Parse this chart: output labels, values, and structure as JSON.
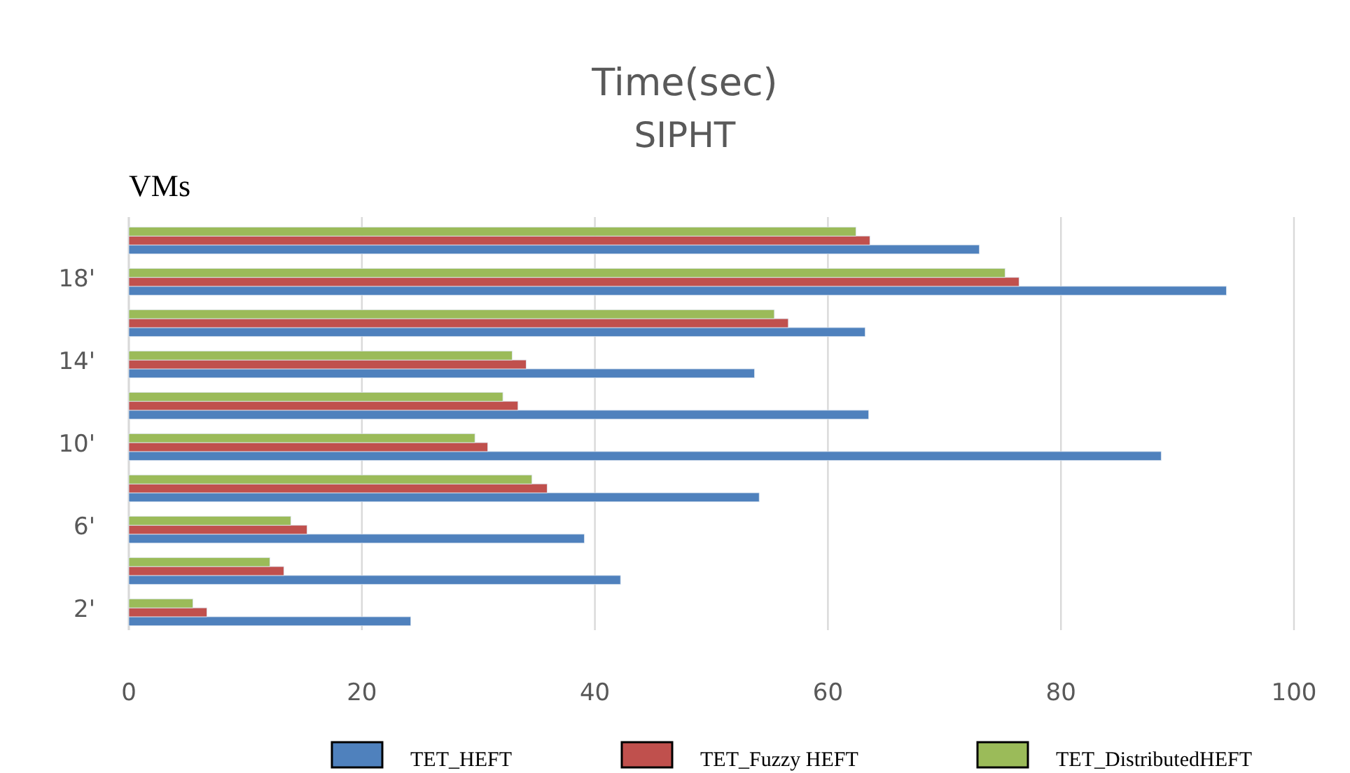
{
  "chart_data": {
    "type": "bar",
    "orientation": "horizontal",
    "title": "Time(sec)",
    "subtitle": "SIPHT",
    "ylabel": "VMs",
    "categories": [
      null,
      "18'",
      null,
      "14'",
      null,
      "10'",
      null,
      "6'",
      null,
      "2'"
    ],
    "series": [
      {
        "name": "TET_HEFT",
        "color": "#4f81bd",
        "values": [
          73.0,
          94.2,
          63.2,
          53.7,
          63.5,
          88.6,
          54.1,
          39.1,
          42.2,
          24.2
        ]
      },
      {
        "name": "TET_Fuzzy HEFT",
        "color": "#c0504d",
        "values": [
          63.6,
          76.4,
          56.6,
          34.1,
          33.4,
          30.8,
          35.9,
          15.3,
          13.3,
          6.7
        ]
      },
      {
        "name": "TET_DistributedHEFT",
        "color": "#9bbb59",
        "values": [
          62.4,
          75.2,
          55.4,
          32.9,
          32.1,
          29.7,
          34.6,
          13.9,
          12.1,
          5.5
        ]
      }
    ],
    "xlim": [
      0,
      100
    ],
    "xticks": [
      0,
      20,
      40,
      60,
      80,
      100
    ],
    "grid": "x",
    "legend": "bottom"
  }
}
